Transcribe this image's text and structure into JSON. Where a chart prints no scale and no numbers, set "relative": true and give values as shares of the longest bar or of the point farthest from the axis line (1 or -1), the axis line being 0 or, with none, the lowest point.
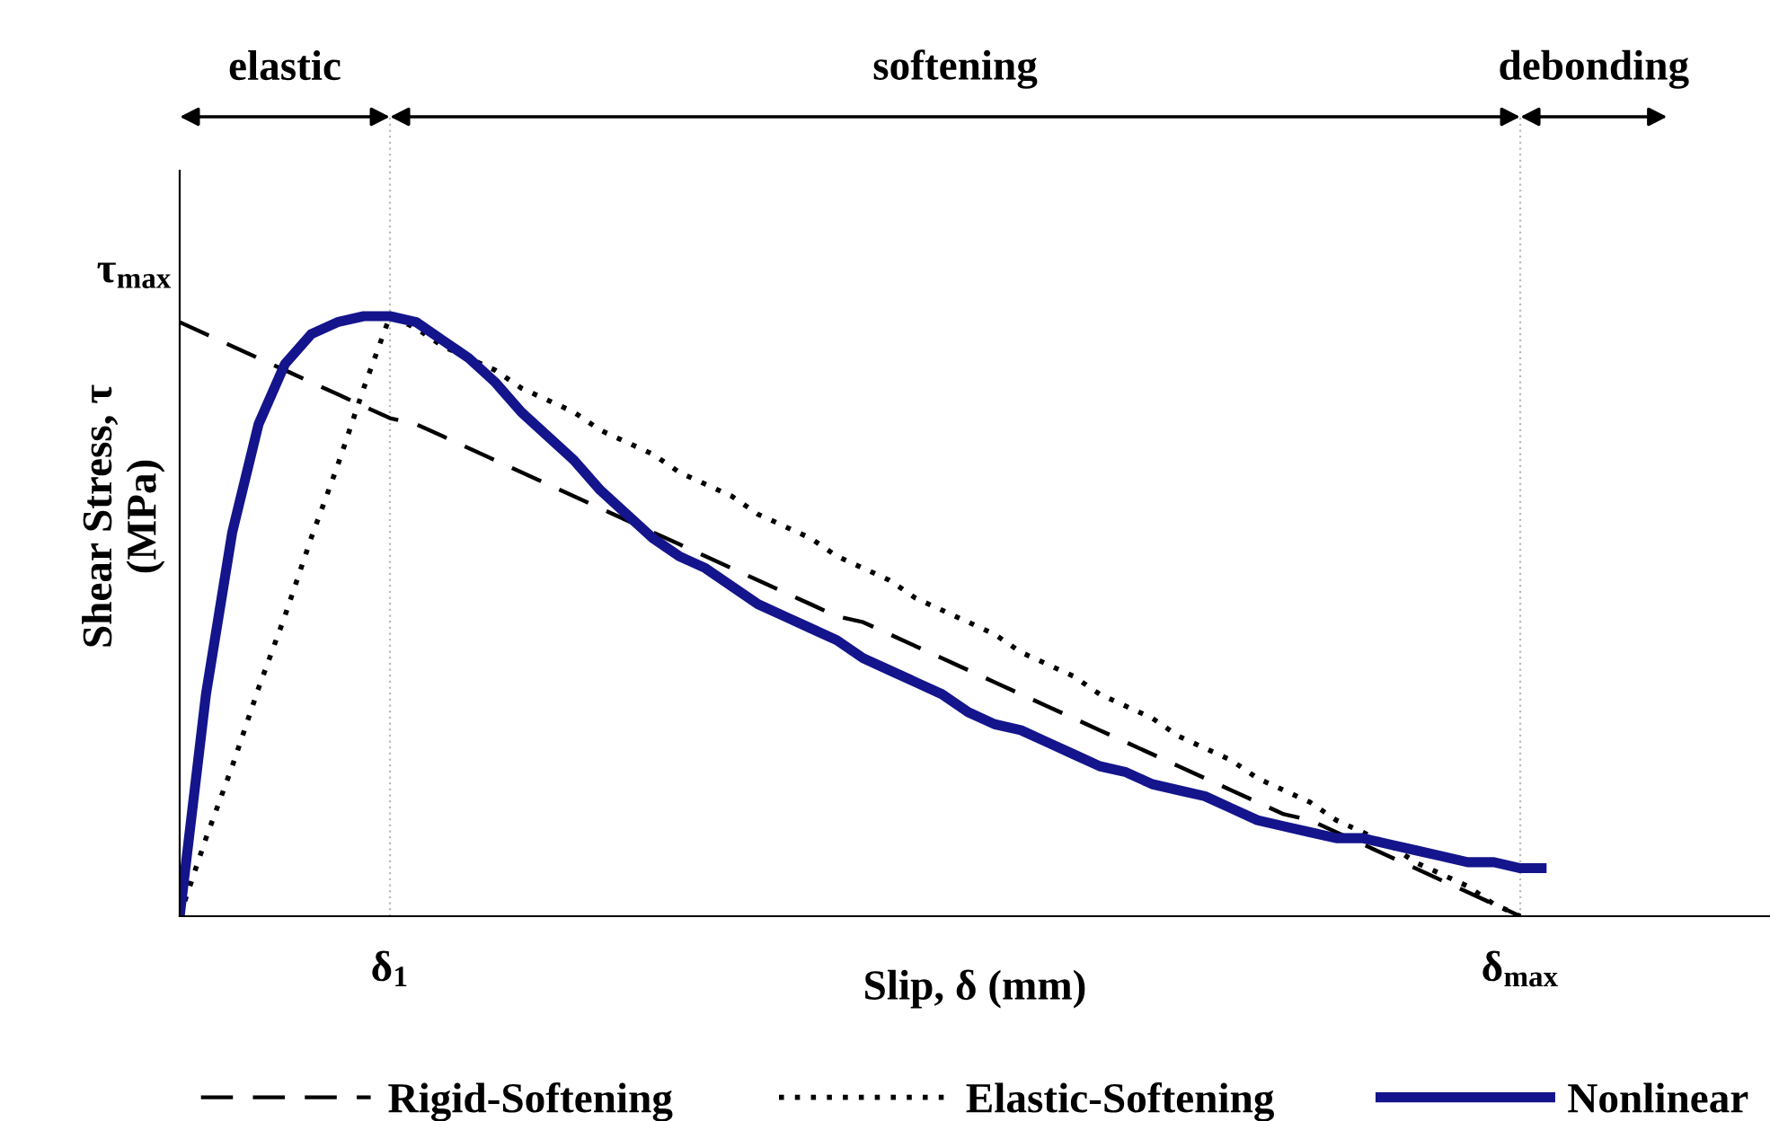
{
  "chart_data": {
    "type": "line",
    "relative": true,
    "xlabel": "Slip, δ (mm)",
    "ylabel": "Shear Stress, τ\n(MPa)",
    "categories": [
      null,
      null,
      null,
      null,
      null,
      null,
      null,
      null,
      "δ$_{1}$",
      null,
      null,
      null,
      null,
      null,
      null,
      null,
      null,
      null,
      null,
      null,
      null,
      null,
      null,
      null,
      null,
      null,
      null,
      null,
      null,
      null,
      null,
      null,
      null,
      null,
      null,
      null,
      null,
      null,
      null,
      null,
      null,
      null,
      null,
      null,
      null,
      null,
      null,
      null,
      null,
      null,
      null,
      "δ$_{max}$",
      null,
      null,
      null,
      null,
      null,
      null,
      null,
      null,
      null
    ],
    "series": [
      {
        "name": "Rigid-Softening",
        "color": "#000000",
        "line_style": "dashed",
        "values": [
          0.99,
          0.97,
          0.95,
          0.93,
          0.91,
          0.89,
          0.87,
          0.85,
          0.83,
          0.82,
          0.8,
          0.78,
          0.76,
          0.74,
          0.72,
          0.7,
          0.68,
          0.66,
          0.64,
          0.62,
          0.6,
          0.58,
          0.56,
          0.54,
          0.52,
          0.5,
          0.49,
          0.47,
          0.45,
          0.43,
          0.41,
          0.39,
          0.37,
          0.35,
          0.33,
          0.31,
          0.29,
          0.27,
          0.25,
          0.23,
          0.21,
          0.19,
          0.17,
          0.16,
          0.14,
          0.12,
          0.1,
          0.08,
          0.06,
          0.04,
          0.02,
          0,
          null,
          null,
          null,
          null,
          null,
          null,
          null,
          null,
          null
        ]
      },
      {
        "name": "Elastic-Softening",
        "color": "#000000",
        "line_style": "dotted",
        "values": [
          0,
          0.13,
          0.25,
          0.38,
          0.5,
          0.63,
          0.75,
          0.88,
          1,
          0.98,
          0.95,
          0.93,
          0.91,
          0.88,
          0.86,
          0.84,
          0.81,
          0.79,
          0.77,
          0.74,
          0.72,
          0.7,
          0.67,
          0.65,
          0.63,
          0.6,
          0.58,
          0.56,
          0.53,
          0.51,
          0.49,
          0.47,
          0.44,
          0.42,
          0.4,
          0.37,
          0.35,
          0.33,
          0.3,
          0.28,
          0.26,
          0.23,
          0.21,
          0.19,
          0.16,
          0.14,
          0.12,
          0.09,
          0.07,
          0.05,
          0.02,
          0,
          null,
          null,
          null,
          null,
          null,
          null,
          null,
          null,
          null
        ]
      },
      {
        "name": "Nonlinear",
        "color": "#14148c",
        "line_style": "solid",
        "values": [
          0,
          0.37,
          0.64,
          0.82,
          0.92,
          0.97,
          0.99,
          1,
          1,
          0.99,
          0.96,
          0.93,
          0.89,
          0.84,
          0.8,
          0.76,
          0.71,
          0.67,
          0.63,
          0.6,
          0.58,
          0.55,
          0.52,
          0.5,
          0.48,
          0.46,
          0.43,
          0.41,
          0.39,
          0.37,
          0.34,
          0.32,
          0.31,
          0.29,
          0.27,
          0.25,
          0.24,
          0.22,
          0.21,
          0.2,
          0.18,
          0.16,
          0.15,
          0.14,
          0.13,
          0.13,
          0.12,
          0.11,
          0.1,
          0.09,
          0.09,
          0.08,
          0.08,
          null,
          null,
          null,
          null,
          null,
          null,
          null,
          null
        ]
      }
    ],
    "annotations": [
      "elastic",
      "softening",
      "debonding",
      "τ$_{max}$"
    ],
    "legend": "bottom",
    "grid": "x"
  }
}
